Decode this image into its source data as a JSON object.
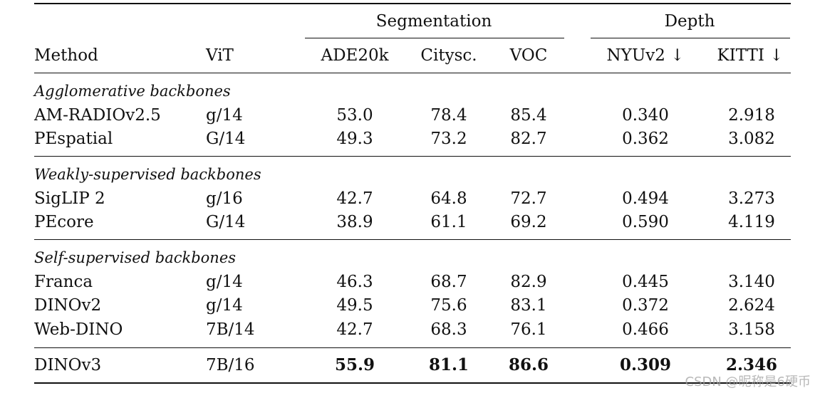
{
  "group_headers": {
    "segmentation": "Segmentation",
    "depth": "Depth"
  },
  "columns": {
    "method": "Method",
    "vit": "ViT",
    "ade20k": "ADE20k",
    "citysc": "Citysc.",
    "voc": "VOC",
    "nyuv2": "NYUv2 ↓",
    "kitti": "KITTI ↓"
  },
  "sections": [
    {
      "title": "Agglomerative backbones",
      "rows": [
        {
          "method": "AM-RADIOv2.5",
          "vit": "g/14",
          "ade20k": "53.0",
          "citysc": "78.4",
          "voc": "85.4",
          "nyuv2": "0.340",
          "kitti": "2.918"
        },
        {
          "method": "PEspatial",
          "vit": "G/14",
          "ade20k": "49.3",
          "citysc": "73.2",
          "voc": "82.7",
          "nyuv2": "0.362",
          "kitti": "3.082"
        }
      ]
    },
    {
      "title": "Weakly-supervised backbones",
      "rows": [
        {
          "method": "SigLIP 2",
          "vit": "g/16",
          "ade20k": "42.7",
          "citysc": "64.8",
          "voc": "72.7",
          "nyuv2": "0.494",
          "kitti": "3.273"
        },
        {
          "method": "PEcore",
          "vit": "G/14",
          "ade20k": "38.9",
          "citysc": "61.1",
          "voc": "69.2",
          "nyuv2": "0.590",
          "kitti": "4.119"
        }
      ]
    },
    {
      "title": "Self-supervised backbones",
      "rows": [
        {
          "method": "Franca",
          "vit": "g/14",
          "ade20k": "46.3",
          "citysc": "68.7",
          "voc": "82.9",
          "nyuv2": "0.445",
          "kitti": "3.140"
        },
        {
          "method": "DINOv2",
          "vit": "g/14",
          "ade20k": "49.5",
          "citysc": "75.6",
          "voc": "83.1",
          "nyuv2": "0.372",
          "kitti": "2.624"
        },
        {
          "method": "Web-DINO",
          "vit": "7B/14",
          "ade20k": "42.7",
          "citysc": "68.3",
          "voc": "76.1",
          "nyuv2": "0.466",
          "kitti": "3.158"
        }
      ]
    }
  ],
  "final_row": {
    "method": "DINOv3",
    "vit": "7B/16",
    "ade20k": "55.9",
    "citysc": "81.1",
    "voc": "86.6",
    "nyuv2": "0.309",
    "kitti": "2.346"
  },
  "watermark": "CSDN @昵称是6硬币"
}
